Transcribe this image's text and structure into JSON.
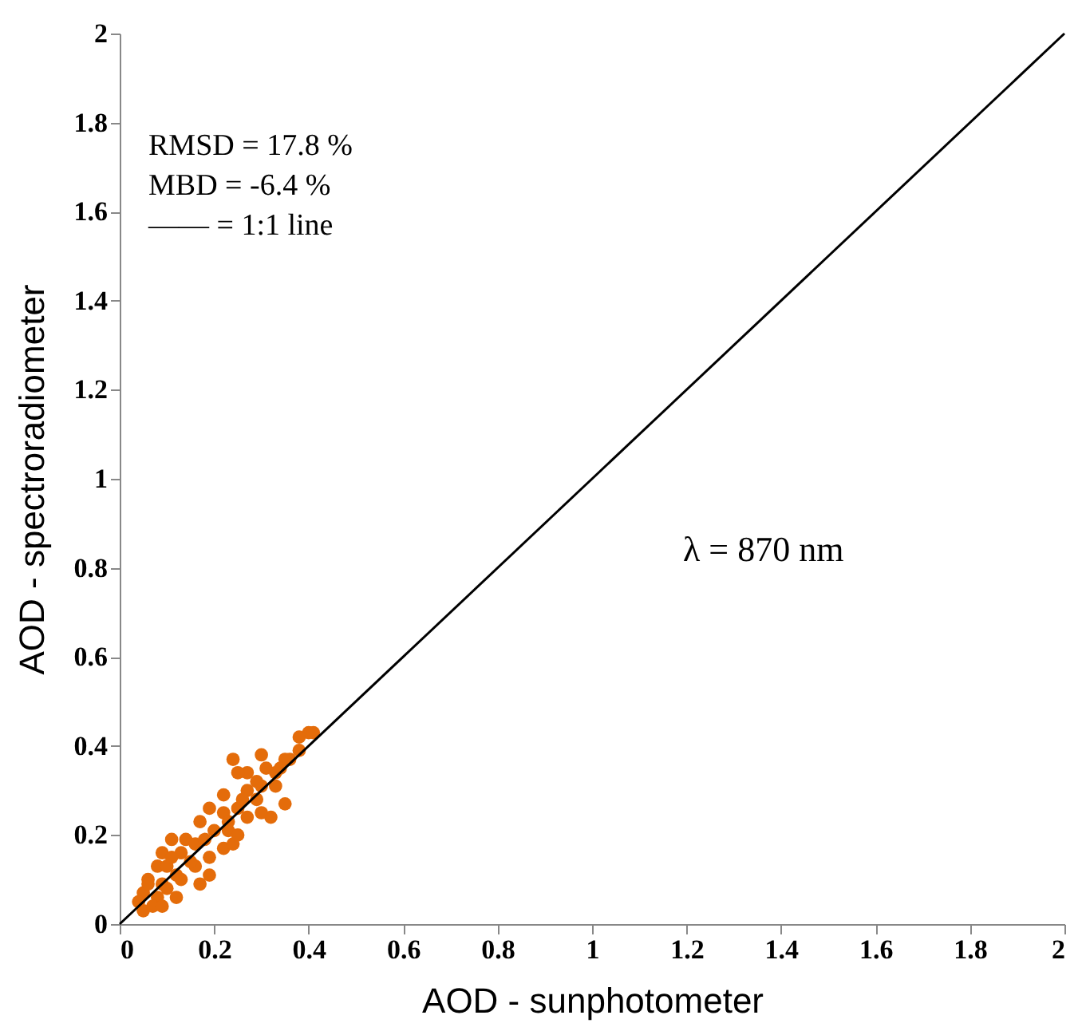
{
  "chart_data": {
    "type": "scatter",
    "xlabel": "AOD - sunphotometer",
    "ylabel": "AOD - spectroradiometer",
    "xlim": [
      0,
      2
    ],
    "ylim": [
      0,
      2
    ],
    "xticks": [
      0,
      0.2,
      0.4,
      0.6,
      0.8,
      1,
      1.2,
      1.4,
      1.6,
      1.8,
      2
    ],
    "yticks": [
      0,
      0.2,
      0.4,
      0.6,
      0.8,
      1,
      1.2,
      1.4,
      1.6,
      1.8,
      2
    ],
    "grid": false,
    "legend": false,
    "annotations": [
      "RMSD = 17.8 %",
      "MBD = -6.4 %",
      "—— = 1:1 line",
      "λ = 870 nm"
    ],
    "series": [
      {
        "marker": "circle",
        "color": "#e46c0a",
        "x": [
          0.4,
          0.41,
          0.38,
          0.3,
          0.24,
          0.38,
          0.36,
          0.31,
          0.27,
          0.25,
          0.33,
          0.35,
          0.32,
          0.22,
          0.19,
          0.27,
          0.3,
          0.29,
          0.25,
          0.22,
          0.17,
          0.23,
          0.27,
          0.14,
          0.11,
          0.16,
          0.13,
          0.18,
          0.09,
          0.08,
          0.1,
          0.12,
          0.16,
          0.19,
          0.22,
          0.24,
          0.06,
          0.09,
          0.05,
          0.08,
          0.04,
          0.05,
          0.07,
          0.1,
          0.13,
          0.11,
          0.2,
          0.29,
          0.33,
          0.35,
          0.23,
          0.26,
          0.3,
          0.15,
          0.17,
          0.12,
          0.09,
          0.06,
          0.19,
          0.25,
          0.34
        ],
        "values": [
          0.43,
          0.43,
          0.42,
          0.38,
          0.37,
          0.39,
          0.37,
          0.35,
          0.34,
          0.34,
          0.31,
          0.27,
          0.24,
          0.29,
          0.26,
          0.3,
          0.31,
          0.28,
          0.26,
          0.25,
          0.23,
          0.21,
          0.24,
          0.19,
          0.19,
          0.18,
          0.16,
          0.19,
          0.16,
          0.13,
          0.13,
          0.11,
          0.13,
          0.15,
          0.17,
          0.18,
          0.1,
          0.09,
          0.07,
          0.06,
          0.05,
          0.03,
          0.04,
          0.08,
          0.1,
          0.15,
          0.21,
          0.32,
          0.34,
          0.37,
          0.23,
          0.28,
          0.25,
          0.14,
          0.09,
          0.06,
          0.04,
          0.09,
          0.11,
          0.2,
          0.35
        ]
      },
      {
        "type": "line",
        "color": "#000000",
        "x": [
          0,
          2
        ],
        "values": [
          0,
          2
        ]
      }
    ]
  }
}
